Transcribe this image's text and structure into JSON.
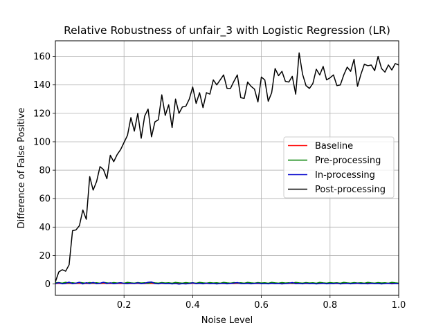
{
  "chart_data": {
    "type": "line",
    "title": "Relative Robustness of unfair_3 with Logistic Regression (LR)",
    "xlabel": "Noise Level",
    "ylabel": "Difference of False Positive",
    "xlim": [
      0.0,
      1.0
    ],
    "ylim": [
      -8,
      171
    ],
    "xticks": [
      0.2,
      0.4,
      0.6,
      0.8,
      1.0
    ],
    "xtick_labels": [
      "0.2",
      "0.4",
      "0.6",
      "0.8",
      "1.0"
    ],
    "yticks": [
      0,
      20,
      40,
      60,
      80,
      100,
      120,
      140,
      160
    ],
    "ytick_labels": [
      "0",
      "20",
      "40",
      "60",
      "80",
      "100",
      "120",
      "140",
      "160"
    ],
    "grid": true,
    "legend_position": "center-right",
    "x": [
      0.0,
      0.01,
      0.02,
      0.03,
      0.04,
      0.05,
      0.06,
      0.07,
      0.08,
      0.09,
      0.1,
      0.11,
      0.12,
      0.13,
      0.14,
      0.15,
      0.16,
      0.17,
      0.18,
      0.19,
      0.2,
      0.21,
      0.22,
      0.23,
      0.24,
      0.25,
      0.26,
      0.27,
      0.28,
      0.29,
      0.3,
      0.31,
      0.32,
      0.33,
      0.34,
      0.35,
      0.36,
      0.37,
      0.38,
      0.39,
      0.4,
      0.41,
      0.42,
      0.43,
      0.44,
      0.45,
      0.46,
      0.47,
      0.48,
      0.49,
      0.5,
      0.51,
      0.52,
      0.53,
      0.54,
      0.55,
      0.56,
      0.57,
      0.58,
      0.59,
      0.6,
      0.61,
      0.62,
      0.63,
      0.64,
      0.65,
      0.66,
      0.67,
      0.68,
      0.69,
      0.7,
      0.71,
      0.72,
      0.73,
      0.74,
      0.75,
      0.76,
      0.77,
      0.78,
      0.79,
      0.8,
      0.81,
      0.82,
      0.83,
      0.84,
      0.85,
      0.86,
      0.87,
      0.88,
      0.89,
      0.9,
      0.91,
      0.92,
      0.93,
      0.94,
      0.95,
      0.96,
      0.97,
      0.98,
      0.99,
      1.0
    ],
    "series": [
      {
        "name": "Baseline",
        "color": "#ff0000",
        "values": [
          0.5,
          0.6,
          0.4,
          0.5,
          0.6,
          0.4,
          0.5,
          0.5,
          0.6,
          0.4,
          0.5,
          0.5,
          0.6,
          0.4,
          0.5,
          0.5,
          0.4,
          0.6,
          0.5,
          0.4,
          0.5,
          0.6,
          0.4,
          0.5,
          0.5,
          0.6,
          0.4,
          0.5,
          0.5,
          0.4,
          0.6,
          0.5,
          0.4,
          0.5,
          0.6,
          0.4,
          0.5,
          0.5,
          0.6,
          0.4,
          0.5,
          0.5,
          0.6,
          0.4,
          0.5,
          0.5,
          0.4,
          0.6,
          0.5,
          0.4,
          0.5,
          0.6,
          0.4,
          0.5,
          0.5,
          0.6,
          0.4,
          0.5,
          0.5,
          0.4,
          0.6,
          0.5,
          0.4,
          0.5,
          0.6,
          0.4,
          0.5,
          0.5,
          0.6,
          0.4,
          0.5,
          0.5,
          0.6,
          0.4,
          0.5,
          0.5,
          0.4,
          0.6,
          0.5,
          0.4,
          0.5,
          0.6,
          0.4,
          0.5,
          0.5,
          0.6,
          0.4,
          0.5,
          0.5,
          0.4,
          0.6,
          0.5,
          0.4,
          0.5,
          0.6,
          0.4,
          0.5,
          0.5,
          0.6,
          0.4,
          0.5
        ]
      },
      {
        "name": "Pre-processing",
        "color": "#008000",
        "values": [
          0.8,
          1.0,
          0.6,
          1.2,
          0.7,
          0.9,
          0.5,
          1.1,
          0.8,
          0.6,
          1.0,
          0.7,
          0.9,
          0.5,
          1.1,
          0.8,
          0.6,
          1.0,
          0.7,
          0.9,
          0.5,
          1.1,
          0.8,
          0.6,
          1.0,
          0.7,
          0.9,
          0.5,
          1.1,
          0.8,
          0.6,
          1.0,
          0.7,
          0.9,
          0.5,
          1.1,
          0.8,
          0.6,
          1.0,
          0.7,
          0.9,
          0.5,
          1.1,
          0.8,
          0.6,
          1.0,
          0.7,
          0.9,
          0.5,
          1.1,
          0.8,
          0.6,
          1.0,
          0.7,
          0.9,
          0.5,
          1.1,
          0.8,
          0.6,
          1.0,
          0.7,
          0.9,
          0.5,
          1.1,
          0.8,
          0.6,
          1.0,
          0.7,
          0.9,
          0.5,
          1.1,
          0.8,
          0.6,
          1.0,
          0.7,
          0.9,
          0.5,
          1.1,
          0.8,
          0.6,
          1.0,
          0.7,
          0.9,
          0.5,
          1.1,
          0.8,
          0.6,
          1.0,
          0.7,
          0.9,
          0.5,
          1.1,
          0.8,
          0.6,
          1.0,
          0.7,
          0.9,
          0.5,
          1.1,
          0.8,
          0.6
        ]
      },
      {
        "name": "In-processing",
        "color": "#0000cc",
        "values": [
          0.3,
          0.9,
          0.1,
          0.4,
          1.3,
          0.2,
          0.6,
          1.2,
          0.0,
          0.9,
          0.3,
          1.1,
          0.2,
          0.5,
          1.2,
          0.3,
          0.8,
          0.2,
          0.5,
          0.9,
          0.4,
          0.2,
          0.6,
          0.3,
          0.8,
          0.2,
          0.5,
          1.2,
          1.4,
          0.3,
          0.1,
          0.6,
          0.2,
          0.4,
          0.0,
          0.3,
          -0.1,
          0.2,
          0.0,
          0.3,
          0.8,
          0.2,
          0.5,
          0.1,
          0.6,
          0.2,
          0.4,
          0.0,
          0.3,
          0.5,
          0.1,
          0.4,
          0.6,
          1.0,
          0.3,
          0.2,
          0.5,
          0.1,
          0.4,
          0.6,
          0.2,
          0.3,
          0.1,
          0.5,
          0.2,
          0.4,
          0.0,
          0.3,
          0.5,
          1.0,
          0.2,
          0.4,
          0.1,
          0.6,
          0.2,
          0.4,
          0.0,
          0.3,
          0.5,
          0.1,
          0.4,
          0.2,
          0.6,
          0.0,
          0.3,
          0.5,
          0.1,
          0.4,
          0.6,
          0.2,
          0.3,
          0.1,
          0.5,
          0.2,
          0.4,
          0.0,
          0.3,
          0.5,
          0.1,
          0.4,
          0.2
        ]
      },
      {
        "name": "Post-processing",
        "color": "#000000",
        "values": [
          1.5,
          8.5,
          10.0,
          9.0,
          13.5,
          37.5,
          38.0,
          41.0,
          52.0,
          45.5,
          75.5,
          66.0,
          72.0,
          82.5,
          80.5,
          74.0,
          90.5,
          86.0,
          91.0,
          94.5,
          99.5,
          104.5,
          117.0,
          107.5,
          120.0,
          102.5,
          118.0,
          123.0,
          103.5,
          114.0,
          115.5,
          133.0,
          118.5,
          126.0,
          110.0,
          130.0,
          120.0,
          124.5,
          125.0,
          130.0,
          138.5,
          127.0,
          134.5,
          124.0,
          134.5,
          133.5,
          143.5,
          140.0,
          143.5,
          147.0,
          137.5,
          137.5,
          142.5,
          147.0,
          131.0,
          130.5,
          142.0,
          139.0,
          137.0,
          128.0,
          145.5,
          143.5,
          128.5,
          134.5,
          151.5,
          146.5,
          149.5,
          142.5,
          142.0,
          146.0,
          133.5,
          162.5,
          147.5,
          139.5,
          137.5,
          141.0,
          151.0,
          147.0,
          153.0,
          143.5,
          145.0,
          147.0,
          139.5,
          140.0,
          147.0,
          152.5,
          149.5,
          158.0,
          139.0,
          147.5,
          154.5,
          153.5,
          154.0,
          150.0,
          160.0,
          151.5,
          149.0,
          154.0,
          150.5,
          155.0,
          154.0
        ]
      }
    ]
  }
}
